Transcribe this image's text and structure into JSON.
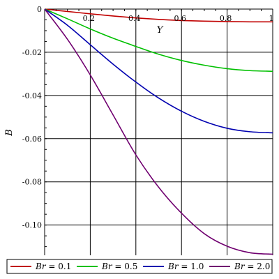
{
  "chart_data": {
    "type": "line",
    "xlabel": "Y",
    "ylabel": "B",
    "xlim": [
      0,
      1
    ],
    "ylim": [
      -0.114,
      0
    ],
    "grid": true,
    "legend_position": "bottom",
    "x_ticks": [
      {
        "value": 0.2,
        "label": "0.2"
      },
      {
        "value": 0.4,
        "label": "0.4"
      },
      {
        "value": 0.6,
        "label": "0.6"
      },
      {
        "value": 0.8,
        "label": "0.8"
      },
      {
        "value": 1.0,
        "label": "1"
      }
    ],
    "y_ticks": [
      {
        "value": 0,
        "label": "0"
      },
      {
        "value": -0.02,
        "label": "-0.02"
      },
      {
        "value": -0.04,
        "label": "-0.04"
      },
      {
        "value": -0.06,
        "label": "-0.06"
      },
      {
        "value": -0.08,
        "label": "-0.08"
      },
      {
        "value": -0.1,
        "label": "-0.10"
      }
    ],
    "x": [
      0,
      0.1,
      0.2,
      0.3,
      0.4,
      0.5,
      0.6,
      0.7,
      0.8,
      0.9,
      1.0
    ],
    "series": [
      {
        "name": "Br = 0.1",
        "symbol": "Br",
        "value_text": "= 0.1",
        "color": "#c00000",
        "values": [
          0,
          -0.0011,
          -0.0022,
          -0.0032,
          -0.0041,
          -0.0048,
          -0.0053,
          -0.0056,
          -0.0058,
          -0.0059,
          -0.0059
        ]
      },
      {
        "name": "Br = 0.5",
        "symbol": "Br",
        "value_text": "= 0.5",
        "color": "#00c000",
        "values": [
          0,
          -0.0045,
          -0.0092,
          -0.0135,
          -0.0173,
          -0.0209,
          -0.0238,
          -0.026,
          -0.0276,
          -0.0285,
          -0.0288
        ]
      },
      {
        "name": "Br = 1.0",
        "symbol": "Br",
        "value_text": "= 1.0",
        "color": "#0000b0",
        "values": [
          0,
          -0.0075,
          -0.0165,
          -0.0255,
          -0.0338,
          -0.0412,
          -0.0473,
          -0.052,
          -0.0552,
          -0.0568,
          -0.0573
        ]
      },
      {
        "name": "Br = 2.0",
        "symbol": "Br",
        "value_text": "= 2.0",
        "color": "#700070",
        "values": [
          0,
          -0.014,
          -0.0305,
          -0.049,
          -0.0675,
          -0.0825,
          -0.0945,
          -0.104,
          -0.1098,
          -0.1128,
          -0.1135
        ]
      }
    ]
  }
}
